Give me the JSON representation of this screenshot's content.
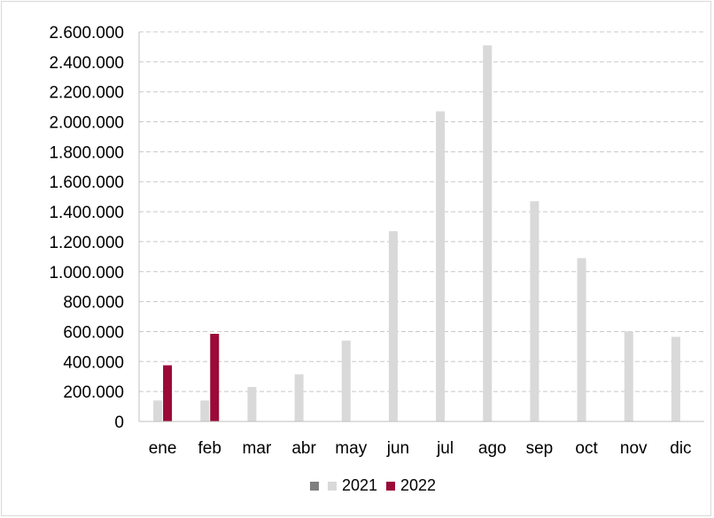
{
  "chart_data": {
    "type": "bar",
    "categories": [
      "ene",
      "feb",
      "mar",
      "abr",
      "may",
      "jun",
      "jul",
      "ago",
      "sep",
      "oct",
      "nov",
      "dic"
    ],
    "series": [
      {
        "name": "",
        "color": "#7f7f7f",
        "values": [
          null,
          null,
          null,
          null,
          null,
          null,
          null,
          null,
          null,
          null,
          null,
          null
        ]
      },
      {
        "name": "2021",
        "color": "#d9d9d9",
        "values": [
          140000,
          140000,
          230000,
          315000,
          540000,
          1270000,
          2070000,
          2510000,
          1470000,
          1090000,
          600000,
          565000
        ]
      },
      {
        "name": "2022",
        "color": "#9b0a38",
        "values": [
          375000,
          585000,
          null,
          null,
          null,
          null,
          null,
          null,
          null,
          null,
          null,
          null
        ]
      }
    ],
    "ylim": [
      0,
      2600000
    ],
    "yticks": [
      0,
      200000,
      400000,
      600000,
      800000,
      1000000,
      1200000,
      1400000,
      1600000,
      1800000,
      2000000,
      2200000,
      2400000,
      2600000
    ],
    "ytick_labels": [
      "0",
      "200.000",
      "400.000",
      "600.000",
      "800.000",
      "1.000.000",
      "1.200.000",
      "1.400.000",
      "1.600.000",
      "1.800.000",
      "2.000.000",
      "2.200.000",
      "2.400.000",
      "2.600.000"
    ],
    "grid": true,
    "legend_position": "bottom",
    "gridline_color": "#c8c8c8",
    "axis_color": "#bfbfbf"
  }
}
